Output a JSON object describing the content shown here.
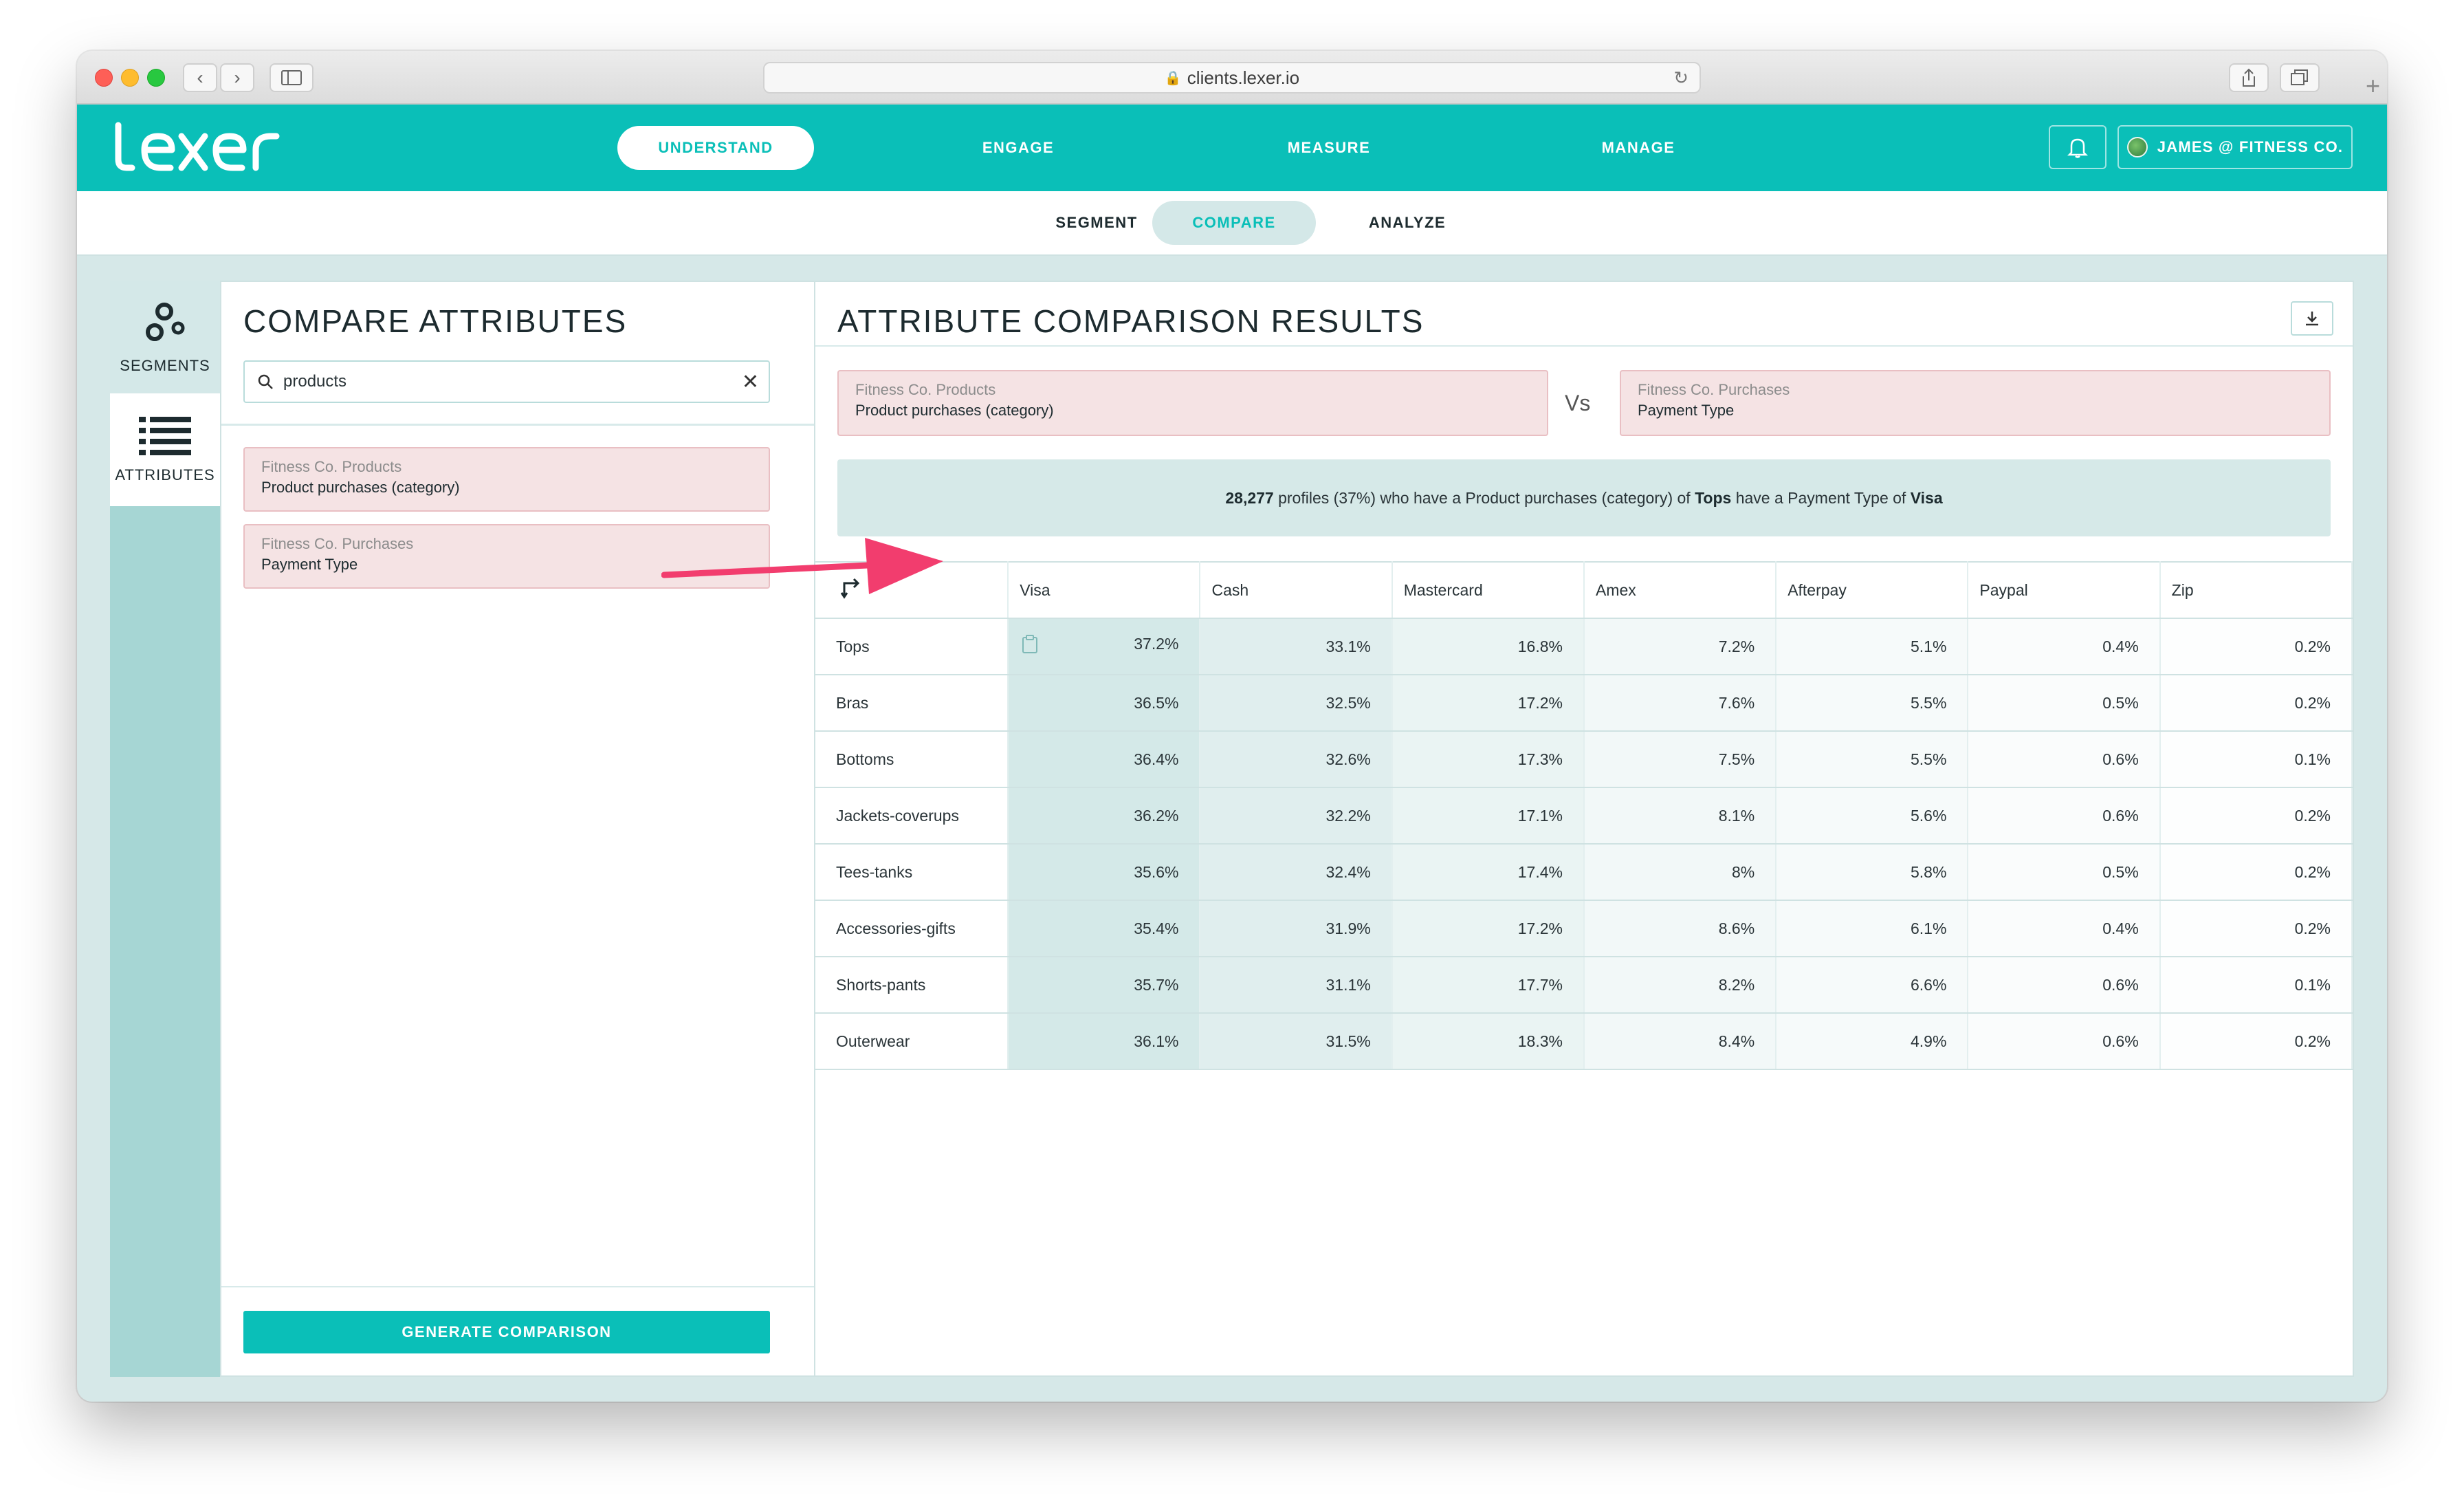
{
  "browser": {
    "url": "clients.lexer.io"
  },
  "app": {
    "logo_text": "lexer",
    "nav": [
      "UNDERSTAND",
      "ENGAGE",
      "MEASURE",
      "MANAGE"
    ],
    "account_label": "JAMES @ FITNESS CO.",
    "subnav": [
      "SEGMENT",
      "COMPARE",
      "ANALYZE"
    ]
  },
  "rail": {
    "items": [
      {
        "label": "SEGMENTS",
        "icon": "segments-icon"
      },
      {
        "label": "ATTRIBUTES",
        "icon": "list-icon"
      }
    ]
  },
  "compare": {
    "title": "COMPARE ATTRIBUTES",
    "search_value": "products",
    "attributes": [
      {
        "source": "Fitness Co. Products",
        "name": "Product purchases (category)"
      },
      {
        "source": "Fitness Co. Purchases",
        "name": "Payment Type"
      }
    ],
    "generate_label": "GENERATE COMPARISON"
  },
  "results": {
    "title": "ATTRIBUTE COMPARISON RESULTS",
    "left": {
      "source": "Fitness Co. Products",
      "name": "Product purchases (category)"
    },
    "vs_label": "Vs",
    "right": {
      "source": "Fitness Co. Purchases",
      "name": "Payment Type"
    },
    "summary": {
      "count": "28,277",
      "part1": " profiles (37%) who have a Product purchases (category) of ",
      "category": "Tops",
      "part2": " have a Payment Type of ",
      "payment": "Visa"
    },
    "columns": [
      "Visa",
      "Cash",
      "Mastercard",
      "Amex",
      "Afterpay",
      "Paypal",
      "Zip"
    ],
    "rows": [
      {
        "label": "Tops",
        "values": [
          "37.2%",
          "33.1%",
          "16.8%",
          "7.2%",
          "5.1%",
          "0.4%",
          "0.2%"
        ]
      },
      {
        "label": "Bras",
        "values": [
          "36.5%",
          "32.5%",
          "17.2%",
          "7.6%",
          "5.5%",
          "0.5%",
          "0.2%"
        ]
      },
      {
        "label": "Bottoms",
        "values": [
          "36.4%",
          "32.6%",
          "17.3%",
          "7.5%",
          "5.5%",
          "0.6%",
          "0.1%"
        ]
      },
      {
        "label": "Jackets-coverups",
        "values": [
          "36.2%",
          "32.2%",
          "17.1%",
          "8.1%",
          "5.6%",
          "0.6%",
          "0.2%"
        ]
      },
      {
        "label": "Tees-tanks",
        "values": [
          "35.6%",
          "32.4%",
          "17.4%",
          "8%",
          "5.8%",
          "0.5%",
          "0.2%"
        ]
      },
      {
        "label": "Accessories-gifts",
        "values": [
          "35.4%",
          "31.9%",
          "17.2%",
          "8.6%",
          "6.1%",
          "0.4%",
          "0.2%"
        ]
      },
      {
        "label": "Shorts-pants",
        "values": [
          "35.7%",
          "31.1%",
          "17.7%",
          "8.2%",
          "6.6%",
          "0.6%",
          "0.1%"
        ]
      },
      {
        "label": "Outerwear",
        "values": [
          "36.1%",
          "31.5%",
          "18.3%",
          "8.4%",
          "4.9%",
          "0.6%",
          "0.2%"
        ]
      }
    ]
  },
  "colors": {
    "brand": "#0abfb8",
    "attribute_card": "#f5e3e4",
    "arrow": "#f23d6e"
  }
}
